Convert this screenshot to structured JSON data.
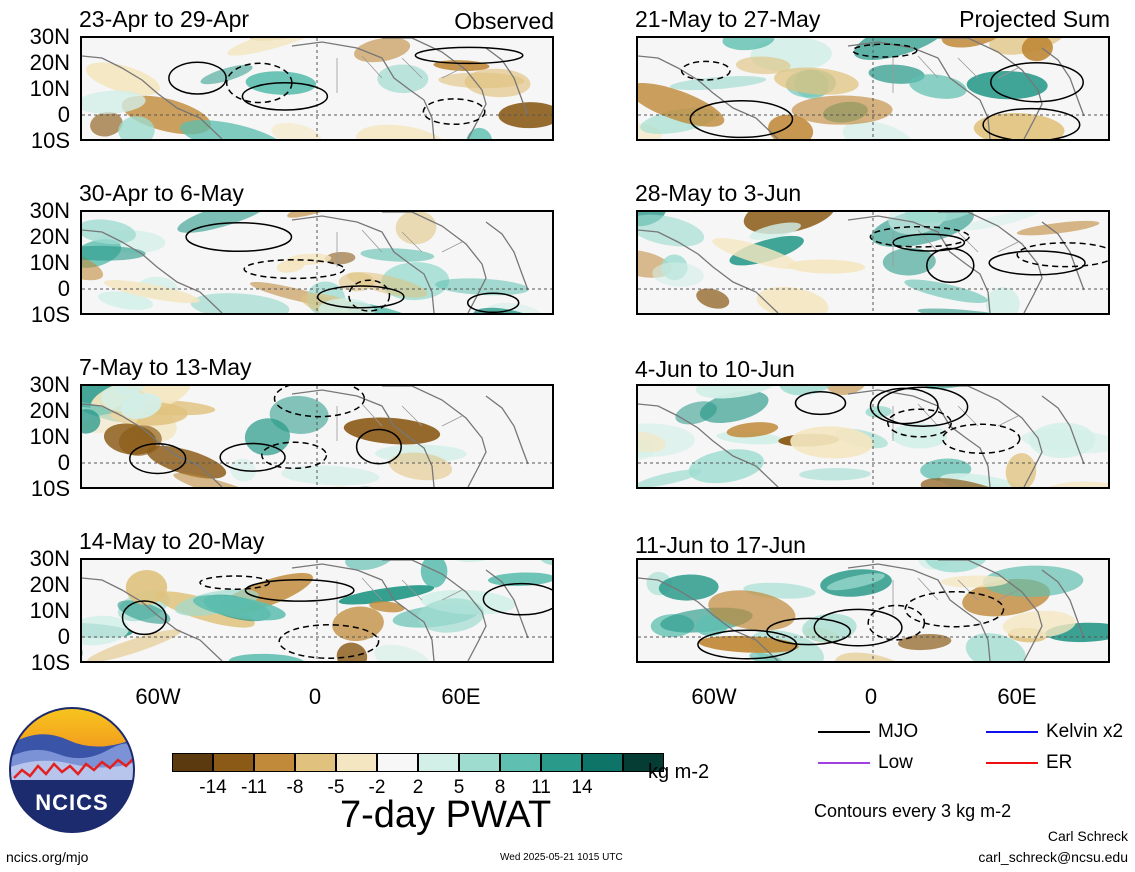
{
  "panels_left": {
    "tag": "Observed",
    "items": [
      {
        "title": "23-Apr to 29-Apr"
      },
      {
        "title": "30-Apr to 6-May"
      },
      {
        "title": "7-May to 13-May"
      },
      {
        "title": "14-May to 20-May"
      }
    ]
  },
  "panels_right": {
    "tag": "Projected Sum",
    "items": [
      {
        "title": "21-May to 27-May"
      },
      {
        "title": "28-May to 3-Jun"
      },
      {
        "title": "4-Jun to 10-Jun"
      },
      {
        "title": "11-Jun to 17-Jun"
      }
    ]
  },
  "lat_labels": [
    "30N",
    "20N",
    "10N",
    "0",
    "10S"
  ],
  "lon_labels": [
    "60W",
    "0",
    "60E"
  ],
  "colorbar": {
    "colors": [
      "#5a3a0e",
      "#8a5a16",
      "#c08a3a",
      "#e0c27e",
      "#f4e6c1",
      "#f7f7f7",
      "#d2efe8",
      "#9fdcd0",
      "#5fbfb0",
      "#2a9a8a",
      "#0f7468",
      "#053c34"
    ],
    "ticks": [
      "-14",
      "-11",
      "-8",
      "-5",
      "-2",
      "2",
      "5",
      "8",
      "11",
      "14"
    ],
    "unit": "kg m-2",
    "title": "7-day PWAT"
  },
  "legend": {
    "items": [
      {
        "label": "MJO",
        "color": "#000000"
      },
      {
        "label": "Kelvin x2",
        "color": "#1010ee"
      },
      {
        "label": "Low",
        "color": "#a040e0"
      },
      {
        "label": "ER",
        "color": "#ee1010"
      }
    ],
    "contours_note": "Contours every 3 kg m-2"
  },
  "logo_text": "NCICS",
  "footer": {
    "url": "ncics.org/mjo",
    "timestamp": "Wed 2025-05-21 1015 UTC",
    "author": "Carl Schreck",
    "email": "carl_schreck@ncsu.edu"
  }
}
